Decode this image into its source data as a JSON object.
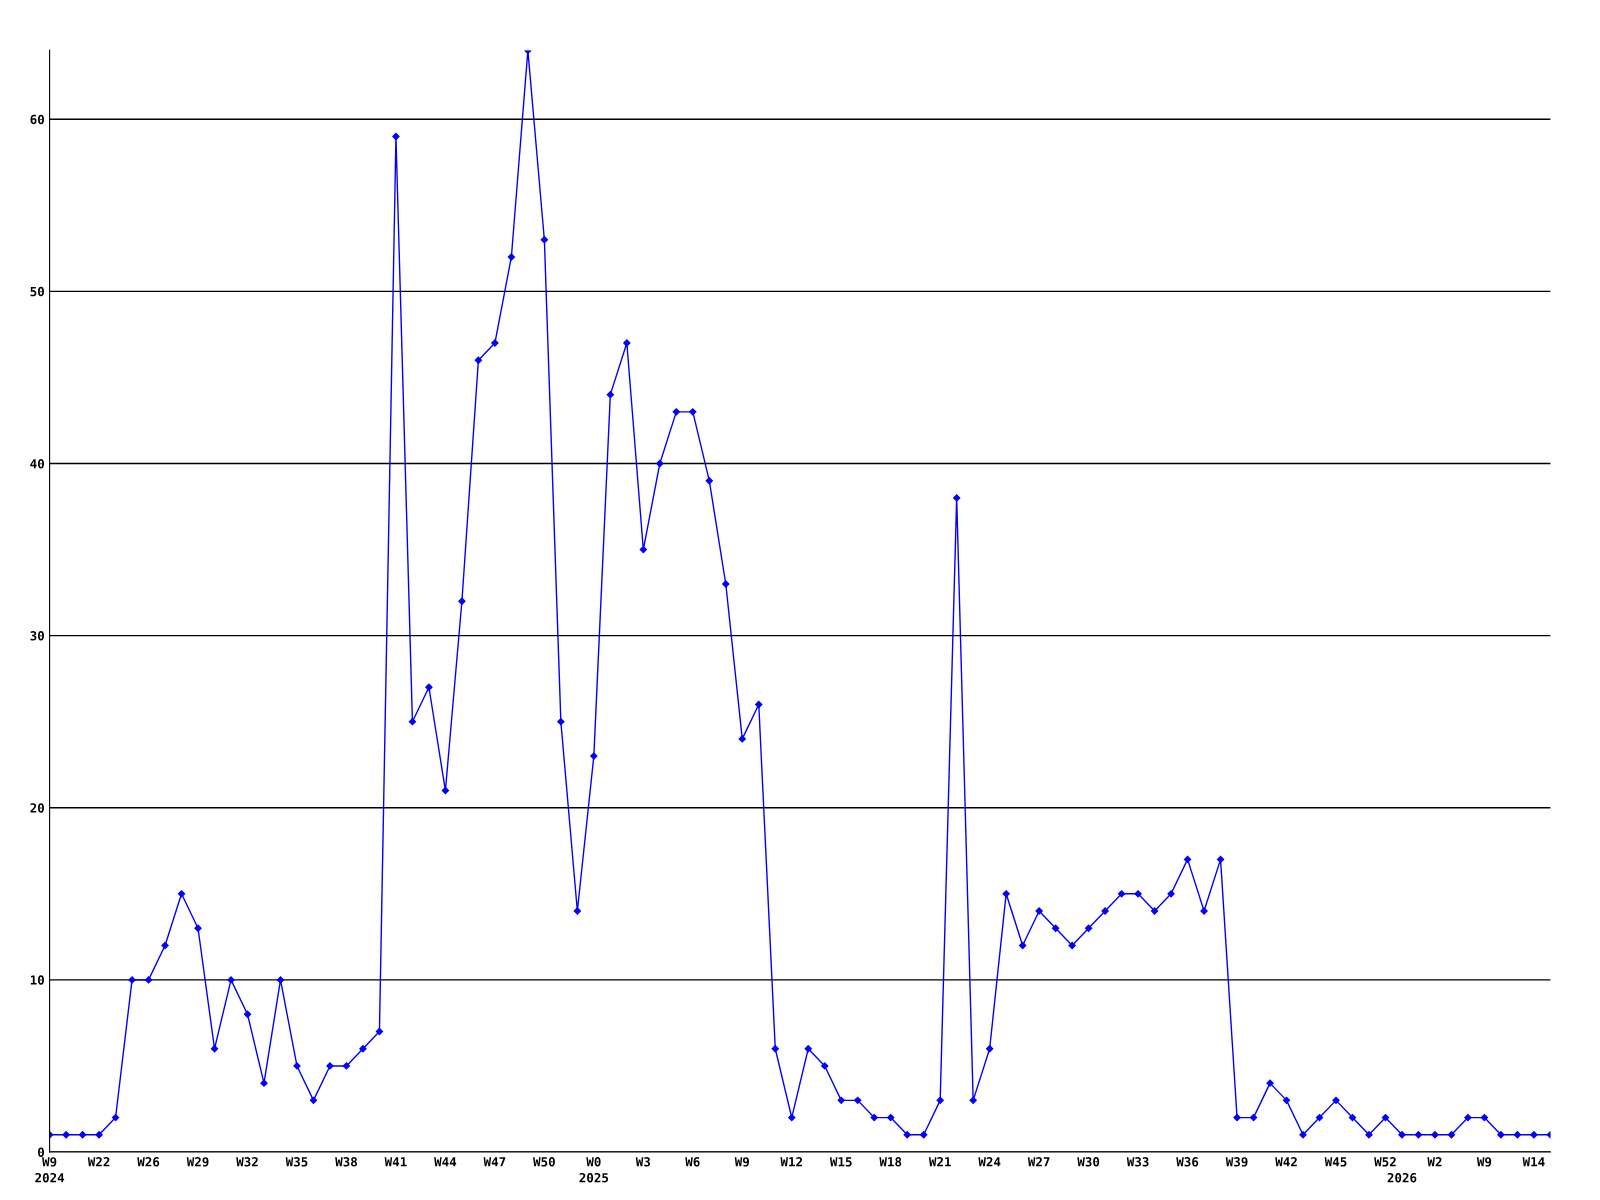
{
  "chart_data": {
    "type": "line",
    "categories": [
      "W9\n2024",
      null,
      null,
      "W22",
      null,
      null,
      "W26",
      null,
      null,
      "W29",
      null,
      null,
      "W32",
      null,
      null,
      "W35",
      null,
      null,
      "W38",
      null,
      null,
      "W41",
      null,
      null,
      "W44",
      null,
      null,
      "W47",
      null,
      null,
      "W50",
      null,
      null,
      "W0\n2025",
      null,
      null,
      "W3",
      null,
      null,
      "W6",
      null,
      null,
      "W9",
      null,
      null,
      "W12",
      null,
      null,
      "W15",
      null,
      null,
      "W18",
      null,
      null,
      "W21",
      null,
      null,
      "W24",
      null,
      null,
      "W27",
      null,
      null,
      "W30",
      null,
      null,
      "W33",
      null,
      null,
      "W36",
      null,
      null,
      "W39",
      null,
      null,
      "W42",
      null,
      null,
      "W45",
      null,
      null,
      "W52",
      "\n2026",
      null,
      "W2",
      null,
      null,
      "W9",
      null,
      null,
      "W14",
      null
    ],
    "series": [
      {
        "color": "#0000ff",
        "values": [
          1,
          1,
          1,
          1,
          2,
          10,
          10,
          12,
          15,
          13,
          6,
          10,
          8,
          4,
          10,
          5,
          3,
          5,
          5,
          6,
          7,
          59,
          25,
          27,
          21,
          32,
          46,
          47,
          52,
          64,
          53,
          25,
          14,
          23,
          44,
          47,
          35,
          40,
          43,
          43,
          39,
          33,
          24,
          26,
          6,
          2,
          6,
          5,
          3,
          3,
          2,
          2,
          1,
          1,
          3,
          38,
          3,
          6,
          15,
          12,
          14,
          13,
          12,
          13,
          14,
          15,
          15,
          14,
          15,
          17,
          14,
          17,
          2,
          2,
          4,
          3,
          1,
          2,
          3,
          2,
          1,
          2,
          1,
          1,
          1,
          1,
          2,
          2,
          1,
          1,
          1,
          1
        ]
      }
    ],
    "ylim": [
      0,
      64
    ],
    "yticks": [
      0,
      10,
      20,
      30,
      40,
      50,
      60
    ],
    "grid": "y",
    "marker": "diamond",
    "line_style": "solid"
  }
}
